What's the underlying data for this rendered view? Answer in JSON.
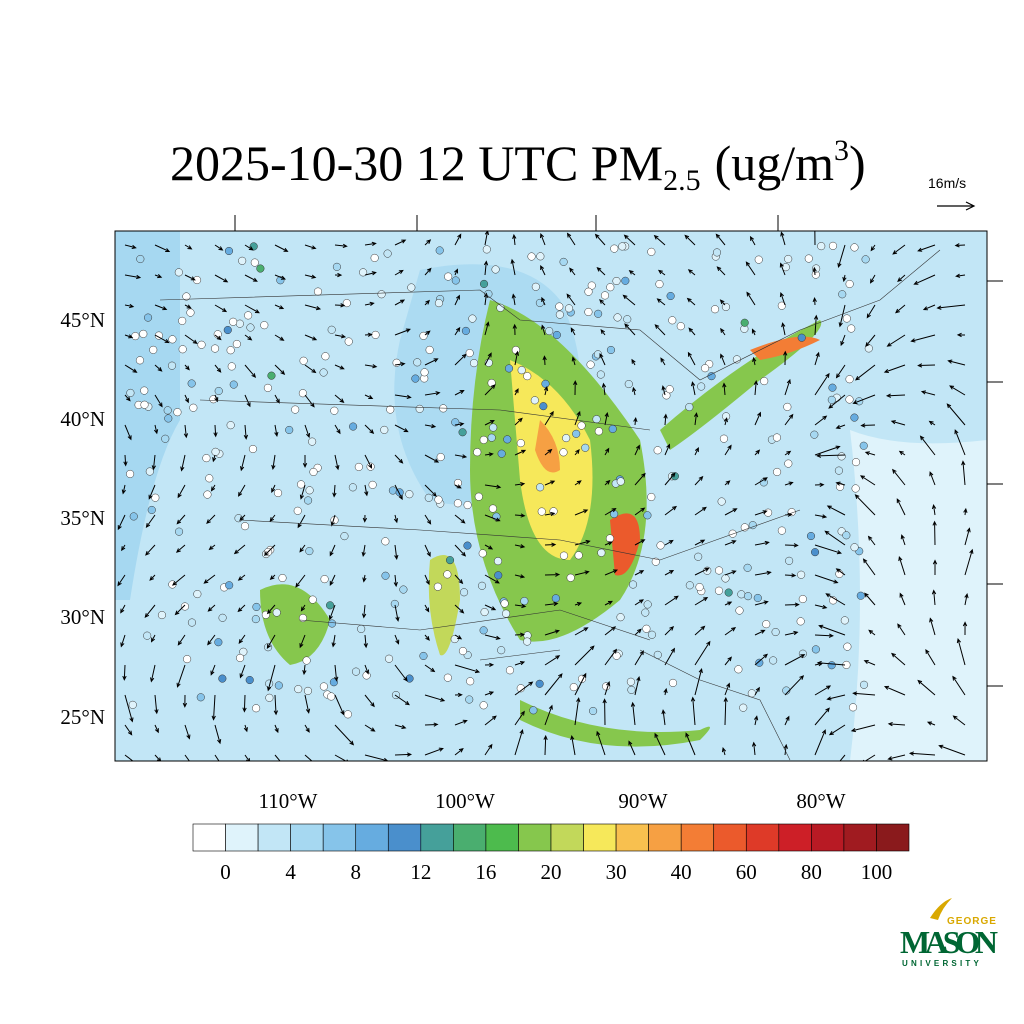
{
  "title": {
    "main": "2025-10-30 12 UTC PM",
    "subscript": "2.5",
    "unit_open": "(ug/m",
    "superscript": "3",
    "unit_close": ")"
  },
  "vector_reference": "16m/s",
  "latitude_labels": [
    "45°N",
    "40°N",
    "35°N",
    "30°N",
    "25°N"
  ],
  "longitude_labels": [
    "110°W",
    "100°W",
    "90°W",
    "80°W"
  ],
  "colorbar": {
    "colors": [
      "#ffffff",
      "#dff3fb",
      "#c2e6f6",
      "#a6d8f1",
      "#86c4ea",
      "#66ace0",
      "#4a8fcc",
      "#45a09a",
      "#4aae6f",
      "#4dbb4d",
      "#86c74d",
      "#c2d85a",
      "#f6e85a",
      "#f8c04f",
      "#f6a043",
      "#f37d35",
      "#eb5a2c",
      "#de3a28",
      "#cd1f27",
      "#b81a24",
      "#a01b20",
      "#8a1a1c"
    ],
    "labels": [
      0,
      4,
      8,
      12,
      16,
      20,
      30,
      40,
      60,
      80,
      100
    ]
  },
  "logo": {
    "top": "GEORGE",
    "main": "MASON",
    "bottom": "UNIVERSITY"
  }
}
